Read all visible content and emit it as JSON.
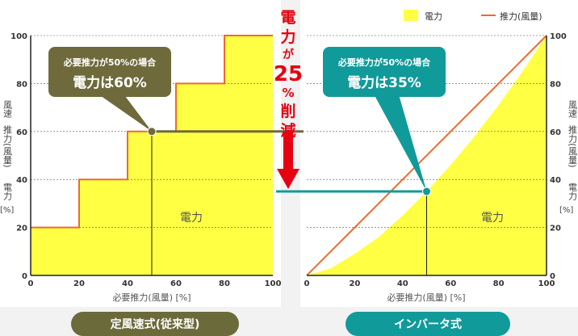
{
  "legend": {
    "power_label": "電力",
    "thrust_label": "推力(風量)",
    "power_color": "#ffff44",
    "thrust_color": "#ee6a2a"
  },
  "center_annotation": {
    "chars": [
      "電",
      "力",
      "が",
      "25",
      "%",
      "削",
      "減"
    ],
    "color": "#e60012"
  },
  "chart_data": [
    {
      "type": "area",
      "name": "定風速式(従来型)",
      "xlabel": "必要推力(風量) [%]",
      "ylabel": [
        "風速",
        "推力(風量)",
        "電力",
        "[%]"
      ],
      "xlim": [
        0,
        100
      ],
      "ylim": [
        0,
        100
      ],
      "xticks": [
        0,
        20,
        40,
        60,
        80,
        100
      ],
      "yticks": [
        0,
        20,
        40,
        60,
        80,
        100
      ],
      "area_label": "電力",
      "series": [
        {
          "name": "電力",
          "x": [
            0,
            20,
            20,
            40,
            40,
            60,
            60,
            80,
            80,
            100
          ],
          "y": [
            20,
            20,
            40,
            40,
            60,
            60,
            80,
            80,
            100,
            100
          ]
        }
      ],
      "annotation": {
        "line1": "必要推力が50%の場合",
        "line2": "電力は60%",
        "point": [
          50,
          60
        ],
        "color": "#6e6a3c"
      }
    },
    {
      "type": "area",
      "name": "インバータ式",
      "xlabel": "必要推力(風量) [%]",
      "ylabel": [
        "風速",
        "推力(風量)",
        "電力",
        "[%]"
      ],
      "xlim": [
        0,
        100
      ],
      "ylim": [
        0,
        100
      ],
      "xticks": [
        0,
        20,
        40,
        60,
        80,
        100
      ],
      "yticks": [
        0,
        20,
        40,
        60,
        80,
        100
      ],
      "area_label": "電力",
      "series": [
        {
          "name": "電力",
          "x": [
            0,
            10,
            20,
            30,
            40,
            50,
            60,
            70,
            80,
            90,
            100
          ],
          "y": [
            0,
            3,
            9,
            16,
            25,
            35,
            46,
            58,
            71,
            85,
            100
          ]
        },
        {
          "name": "推力(風量)",
          "x": [
            0,
            100
          ],
          "y": [
            0,
            100
          ]
        }
      ],
      "annotation": {
        "line1": "必要推力が50%の場合",
        "line2": "電力は35%",
        "point": [
          50,
          35
        ],
        "color": "#119a9a"
      }
    }
  ],
  "buttons": {
    "left_label": "定風速式(従来型)",
    "right_label": "インバータ式"
  }
}
